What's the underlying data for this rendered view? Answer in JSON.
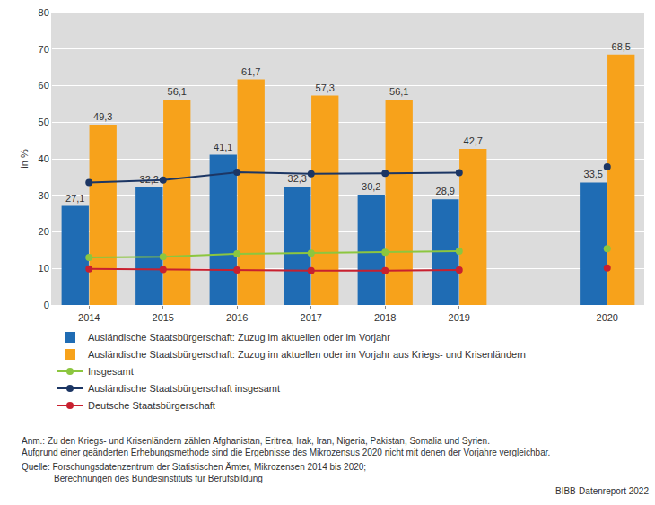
{
  "chart_data": {
    "type": "bar",
    "y_label": "in %",
    "categories": [
      "2014",
      "2015",
      "2016",
      "2017",
      "2018",
      "2019",
      null,
      "2020"
    ],
    "ylim": [
      0,
      80
    ],
    "yticks": [
      0,
      10,
      20,
      30,
      40,
      50,
      60,
      70,
      80
    ],
    "grid": true,
    "legend": "bottom",
    "series": [
      {
        "name": "Ausländische Staatsbürgerschaft: Zuzug im aktuellen oder im Vorjahr",
        "type": "bar",
        "color": "#1f6cb4",
        "data_labels": true,
        "values": [
          27.1,
          32.2,
          41.1,
          32.3,
          30.2,
          28.9,
          null,
          33.5
        ],
        "value_labels": [
          "27,1",
          "32,2",
          "41,1",
          "32,3",
          "30,2",
          "28,9",
          null,
          "33,5"
        ]
      },
      {
        "name": "Ausländische Staatsbürgerschaft: Zuzug im aktuellen oder im Vorjahr aus Kriegs- und Krisenländern",
        "type": "bar",
        "color": "#f7a21b",
        "data_labels": true,
        "values": [
          49.3,
          56.1,
          61.7,
          57.3,
          56.1,
          42.7,
          null,
          68.5
        ],
        "value_labels": [
          "49,3",
          "56,1",
          "61,7",
          "57,3",
          "56,1",
          "42,7",
          null,
          "68,5"
        ]
      },
      {
        "name": "Insgesamt",
        "type": "line",
        "color": "#8cc63f",
        "marker": "circle",
        "values": [
          13.0,
          13.2,
          14.0,
          14.2,
          14.4,
          14.7,
          null,
          15.4
        ]
      },
      {
        "name": "Ausländische Staatsbürgerschaft insgesamt",
        "type": "line",
        "color": "#1c3664",
        "marker": "circle",
        "values": [
          33.5,
          34.2,
          36.3,
          35.9,
          36.0,
          36.2,
          null,
          37.8
        ]
      },
      {
        "name": "Deutsche Staatsbürgerschaft",
        "type": "line",
        "color": "#c8202f",
        "marker": "circle",
        "values": [
          9.9,
          9.7,
          9.6,
          9.4,
          9.4,
          9.6,
          null,
          10.1
        ]
      }
    ],
    "notes": [
      "Anm.: Zu den Kriegs- und Krisenländern zählen Afghanistan, Eritrea, Irak, Iran, Nigeria, Pakistan, Somalia und Syrien.",
      "Aufgrund einer geänderten Erhebungsmethode sind die Ergebnisse des Mikrozensus 2020 nicht mit denen der Vorjahre vergleichbar."
    ],
    "source": [
      "Quelle: Forschungsdatenzentrum der Statistischen Ämter, Mikrozensen 2014 bis 2020;",
      "Berechnungen des Bundesinstituts für Berufsbildung"
    ],
    "credit": "BIBB-Datenreport 2022"
  }
}
